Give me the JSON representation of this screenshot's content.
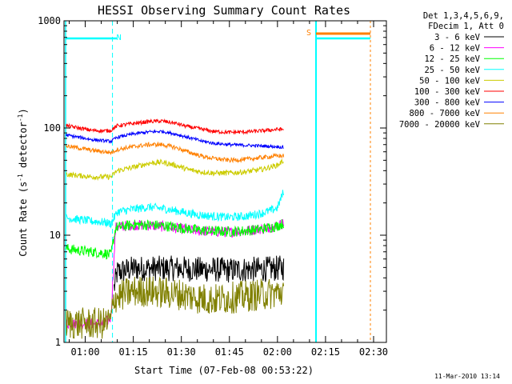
{
  "chart_data": {
    "type": "line",
    "title": "HESSI Observing Summary Count Rates",
    "xlabel": "Start Time (07-Feb-08 00:53:22)",
    "ylabel": "Count Rate (s^-1 detector^-1)",
    "ylabel_main": "Count Rate (s",
    "ylabel_sup1": "-1",
    "ylabel_mid": " detector",
    "ylabel_sup2": "-1",
    "ylabel_end": ")",
    "y_scale": "log",
    "ylim": [
      1,
      1000
    ],
    "xlim_minutes": [
      53.37,
      154
    ],
    "x_ticks": [
      {
        "label": "01:00",
        "minute": 60
      },
      {
        "label": "01:15",
        "minute": 75
      },
      {
        "label": "01:30",
        "minute": 90
      },
      {
        "label": "01:45",
        "minute": 105
      },
      {
        "label": "02:00",
        "minute": 120
      },
      {
        "label": "02:15",
        "minute": 135
      },
      {
        "label": "02:30",
        "minute": 150
      }
    ],
    "y_ticks": [
      {
        "label": "1",
        "value": 1
      },
      {
        "label": "10",
        "value": 10
      },
      {
        "label": "100",
        "value": 100
      },
      {
        "label": "1000",
        "value": 1000
      }
    ],
    "legend_placement": "right-outside",
    "legend_header": [
      "Det 1,3,4,5,6,9,",
      "FDecim 1, Att 0"
    ],
    "markers": [
      {
        "label": "N",
        "minute": 68.5,
        "color": "#00ffff"
      },
      {
        "label": "S",
        "minute": 121.5,
        "color": "#ff8000"
      }
    ],
    "timestamp": "11-Mar-2010 13:14",
    "series": [
      {
        "name": "3 - 6 keV",
        "color": "#000000",
        "points": [
          [
            69,
            3.2
          ],
          [
            70,
            4.5
          ],
          [
            75,
            4.9
          ],
          [
            80,
            4.9
          ],
          [
            85,
            4.9
          ],
          [
            90,
            4.9
          ],
          [
            95,
            4.8
          ],
          [
            100,
            4.8
          ],
          [
            105,
            4.7
          ],
          [
            110,
            4.8
          ],
          [
            115,
            4.8
          ],
          [
            120,
            4.9
          ],
          [
            122,
            5.0
          ]
        ]
      },
      {
        "name": "6 - 12 keV",
        "color": "#ff00ff",
        "points": [
          [
            54,
            1.5
          ],
          [
            58,
            1.5
          ],
          [
            62,
            1.5
          ],
          [
            66,
            1.5
          ],
          [
            68,
            1.7
          ],
          [
            69.5,
            11.8
          ],
          [
            75,
            12.5
          ],
          [
            80,
            12.3
          ],
          [
            85,
            12.0
          ],
          [
            90,
            11.5
          ],
          [
            95,
            11.0
          ],
          [
            100,
            10.8
          ],
          [
            105,
            10.7
          ],
          [
            110,
            11.0
          ],
          [
            115,
            11.5
          ],
          [
            120,
            12.3
          ],
          [
            122,
            13.0
          ]
        ]
      },
      {
        "name": "12 - 25 keV",
        "color": "#00ff00",
        "points": [
          [
            54,
            7.5
          ],
          [
            58,
            7.2
          ],
          [
            62,
            7.0
          ],
          [
            66,
            6.8
          ],
          [
            68,
            6.5
          ],
          [
            69.5,
            11.8
          ],
          [
            75,
            12.5
          ],
          [
            80,
            12.5
          ],
          [
            85,
            12.2
          ],
          [
            90,
            11.7
          ],
          [
            95,
            11.2
          ],
          [
            100,
            10.9
          ],
          [
            105,
            10.8
          ],
          [
            110,
            11.0
          ],
          [
            115,
            11.4
          ],
          [
            120,
            12.2
          ],
          [
            122,
            13.0
          ]
        ]
      },
      {
        "name": "25 - 50 keV",
        "color": "#00ffff",
        "points": [
          [
            54,
            14.5
          ],
          [
            58,
            14.0
          ],
          [
            62,
            13.5
          ],
          [
            66,
            13.2
          ],
          [
            68,
            12.8
          ],
          [
            70,
            16.5
          ],
          [
            75,
            17.5
          ],
          [
            80,
            18.3
          ],
          [
            85,
            17.6
          ],
          [
            90,
            16.5
          ],
          [
            95,
            15.5
          ],
          [
            100,
            15.0
          ],
          [
            105,
            14.7
          ],
          [
            110,
            15.0
          ],
          [
            115,
            16.0
          ],
          [
            118,
            17.0
          ],
          [
            120,
            18.0
          ],
          [
            122,
            26.0
          ]
        ]
      },
      {
        "name": "50 - 100 keV",
        "color": "#cccc00",
        "points": [
          [
            54,
            37
          ],
          [
            58,
            36
          ],
          [
            62,
            35
          ],
          [
            66,
            35
          ],
          [
            68,
            35
          ],
          [
            70,
            40
          ],
          [
            75,
            43
          ],
          [
            80,
            47
          ],
          [
            84,
            48
          ],
          [
            88,
            45
          ],
          [
            92,
            41
          ],
          [
            96,
            39
          ],
          [
            100,
            38
          ],
          [
            105,
            38
          ],
          [
            110,
            39
          ],
          [
            115,
            41
          ],
          [
            120,
            45
          ],
          [
            122,
            50
          ]
        ]
      },
      {
        "name": "100 - 300 keV",
        "color": "#ff0000",
        "points": [
          [
            54,
            105
          ],
          [
            58,
            100
          ],
          [
            62,
            95
          ],
          [
            66,
            94
          ],
          [
            68,
            95
          ],
          [
            70,
            105
          ],
          [
            75,
            110
          ],
          [
            80,
            115
          ],
          [
            84,
            116
          ],
          [
            88,
            111
          ],
          [
            92,
            103
          ],
          [
            96,
            98
          ],
          [
            100,
            93
          ],
          [
            105,
            91
          ],
          [
            110,
            92
          ],
          [
            115,
            94
          ],
          [
            120,
            97
          ],
          [
            122,
            97
          ]
        ]
      },
      {
        "name": "300 - 800 keV",
        "color": "#0000ff",
        "points": [
          [
            54,
            86
          ],
          [
            58,
            82
          ],
          [
            62,
            78
          ],
          [
            66,
            76
          ],
          [
            68,
            75
          ],
          [
            70,
            82
          ],
          [
            75,
            88
          ],
          [
            80,
            92
          ],
          [
            84,
            93
          ],
          [
            88,
            88
          ],
          [
            92,
            82
          ],
          [
            96,
            76
          ],
          [
            100,
            72
          ],
          [
            105,
            70
          ],
          [
            110,
            69
          ],
          [
            115,
            68
          ],
          [
            120,
            67
          ],
          [
            122,
            66
          ]
        ]
      },
      {
        "name": "800 - 7000 keV",
        "color": "#ff8000",
        "points": [
          [
            54,
            68
          ],
          [
            58,
            65
          ],
          [
            62,
            62
          ],
          [
            66,
            60
          ],
          [
            68,
            59
          ],
          [
            70,
            63
          ],
          [
            75,
            67
          ],
          [
            80,
            70
          ],
          [
            84,
            70
          ],
          [
            88,
            66
          ],
          [
            92,
            60
          ],
          [
            96,
            55
          ],
          [
            100,
            52
          ],
          [
            105,
            50
          ],
          [
            110,
            51
          ],
          [
            115,
            53
          ],
          [
            120,
            55
          ],
          [
            122,
            55
          ]
        ]
      },
      {
        "name": "7000 - 20000 keV",
        "color": "#808000",
        "points": [
          [
            54,
            1.5
          ],
          [
            58,
            1.5
          ],
          [
            62,
            1.5
          ],
          [
            66,
            1.5
          ],
          [
            68,
            1.6
          ],
          [
            69,
            2.6
          ],
          [
            75,
            3.0
          ],
          [
            80,
            3.0
          ],
          [
            85,
            2.9
          ],
          [
            90,
            2.8
          ],
          [
            95,
            2.6
          ],
          [
            100,
            2.5
          ],
          [
            105,
            2.6
          ],
          [
            110,
            2.7
          ],
          [
            115,
            2.8
          ],
          [
            120,
            2.9
          ],
          [
            122,
            3.0
          ]
        ]
      }
    ]
  }
}
